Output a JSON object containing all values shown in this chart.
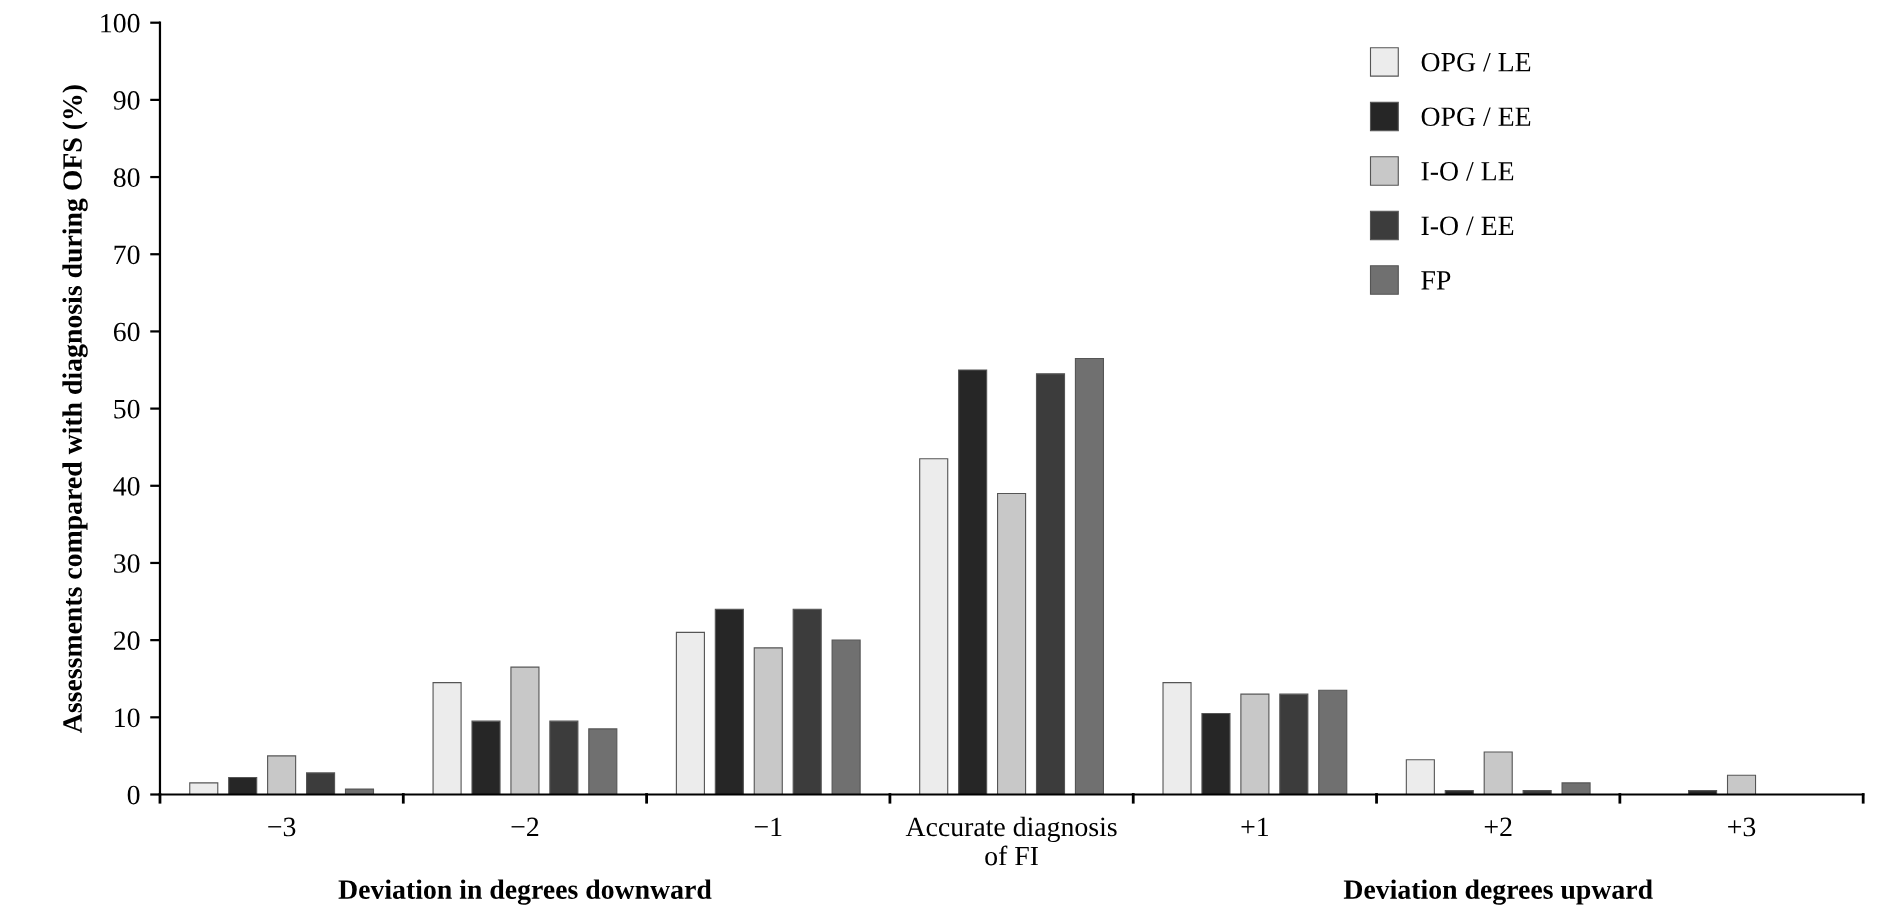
{
  "chart_data": {
    "type": "bar",
    "categories": [
      "−3",
      "−2",
      "−1",
      "Accurate diagnosis\nof FI",
      "+1",
      "+2",
      "+3"
    ],
    "ylabel": "Assessments compared with diagnosis during OFS (%)",
    "ylim": [
      0,
      100
    ],
    "yticks": [
      0,
      10,
      20,
      30,
      40,
      50,
      60,
      70,
      80,
      90,
      100
    ],
    "grid": false,
    "legend": "top right",
    "annotations": [
      "Deviation in degrees downward",
      "Deviation degrees upward"
    ],
    "series": [
      {
        "name": "OPG / LE",
        "color": "#ececec",
        "values": [
          1.5,
          14.5,
          21,
          43.5,
          14.5,
          4.5,
          null
        ]
      },
      {
        "name": "OPG / EE",
        "color": "#262626",
        "values": [
          2.2,
          9.5,
          24,
          55,
          10.5,
          0.5,
          0.5
        ]
      },
      {
        "name": "I-O / LE",
        "color": "#c8c8c8",
        "values": [
          5,
          16.5,
          19,
          39,
          13,
          5.5,
          2.5
        ]
      },
      {
        "name": "I-O / EE",
        "color": "#3c3c3c",
        "values": [
          2.8,
          9.5,
          24,
          54.5,
          13,
          0.5,
          null
        ]
      },
      {
        "name": "FP",
        "color": "#707070",
        "values": [
          0.7,
          8.5,
          20,
          56.5,
          13.5,
          1.5,
          null
        ]
      }
    ]
  }
}
